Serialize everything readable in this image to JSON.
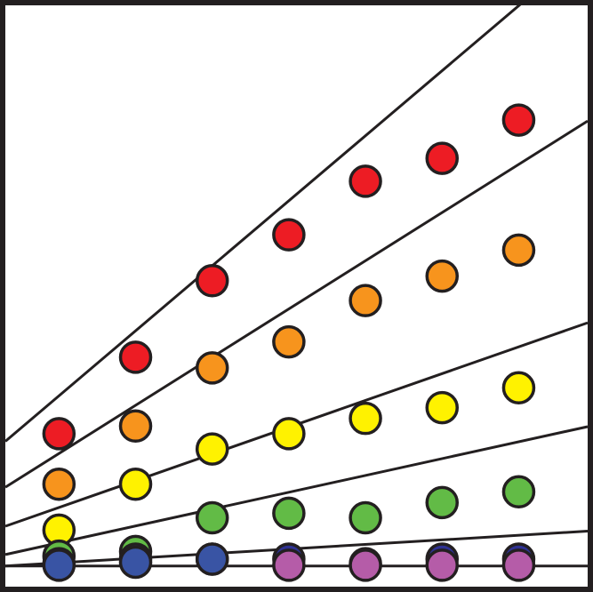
{
  "chart_data": {
    "type": "scatter",
    "title": "",
    "xlabel": "",
    "ylabel": "",
    "xlim": [
      0,
      7.6
    ],
    "ylim": [
      0,
      7.6
    ],
    "grid": false,
    "legend": "none",
    "x": [
      0.7,
      1.7,
      2.7,
      3.7,
      4.7,
      5.7,
      6.7
    ],
    "series": [
      {
        "color": "#ed1c24",
        "y": [
          2.0,
          3.0,
          4.0,
          4.6,
          5.3,
          5.6,
          6.1
        ],
        "fit": [
          1.9,
          0.85
        ]
      },
      {
        "color": "#f7941d",
        "y": [
          1.34,
          2.1,
          2.86,
          3.2,
          3.74,
          4.06,
          4.4
        ],
        "fit": [
          1.3,
          0.63
        ]
      },
      {
        "color": "#fff200",
        "y": [
          0.74,
          1.34,
          1.8,
          2.0,
          2.2,
          2.34,
          2.6
        ],
        "fit": [
          0.79,
          0.35
        ]
      },
      {
        "color": "#62bb46",
        "y": [
          0.4,
          0.46,
          0.9,
          0.96,
          0.9,
          1.1,
          1.24
        ],
        "fit": [
          0.42,
          0.22
        ]
      },
      {
        "color": "#2e3192",
        "y": [
          0.3,
          0.36,
          0.36,
          0.36,
          0.3,
          0.36,
          0.36
        ],
        "fit": [
          0.27,
          0.06
        ]
      },
      {
        "color": "#3954a4",
        "y": [
          0.28,
          0.32,
          0.36
        ],
        "x": [
          0.7,
          1.7,
          2.7
        ],
        "fit": null
      },
      {
        "color": "#b55ca8",
        "y": [
          0.28,
          0.28,
          0.28,
          0.28
        ],
        "x": [
          3.7,
          4.7,
          5.7,
          6.7
        ],
        "fit": [
          0.27,
          0.0
        ]
      }
    ]
  }
}
